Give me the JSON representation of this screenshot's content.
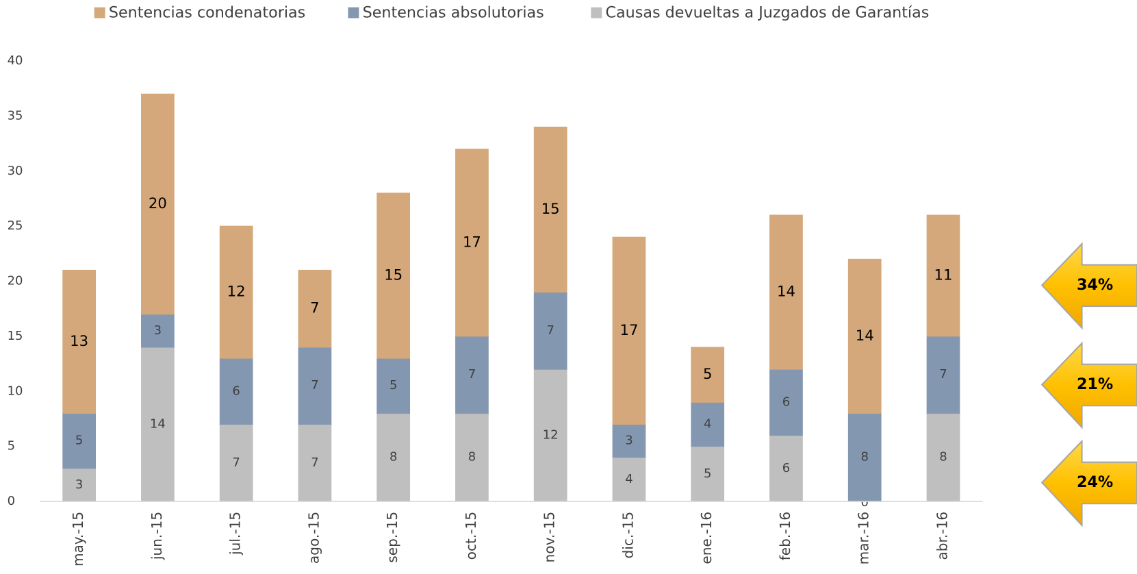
{
  "chart_data": {
    "type": "stacked_bar",
    "categories": [
      "may.-15",
      "jun.-15",
      "jul.-15",
      "ago.-15",
      "sep.-15",
      "oct.-15",
      "nov.-15",
      "dic.-15",
      "ene.-16",
      "feb.-16",
      "mar.-16",
      "abr.-16"
    ],
    "series": [
      {
        "name": "Causas devueltas a Juzgados de Garantías",
        "color": "#bfbfbf",
        "values": [
          3,
          14,
          7,
          7,
          8,
          8,
          12,
          4,
          5,
          6,
          0,
          8
        ]
      },
      {
        "name": "Sentencias absolutorias",
        "color": "#8497b0",
        "values": [
          5,
          3,
          6,
          7,
          5,
          7,
          7,
          3,
          4,
          6,
          8,
          7
        ]
      },
      {
        "name": "Sentencias condenatorias",
        "color": "#d4a87a",
        "values": [
          13,
          20,
          12,
          7,
          15,
          17,
          15,
          17,
          5,
          14,
          14,
          11
        ]
      }
    ],
    "ylim": [
      0,
      40
    ],
    "yticks": [
      0,
      5,
      10,
      15,
      20,
      25,
      30,
      35,
      40
    ],
    "grid": false,
    "annotations": [
      "24%",
      "21%",
      "34%"
    ]
  }
}
